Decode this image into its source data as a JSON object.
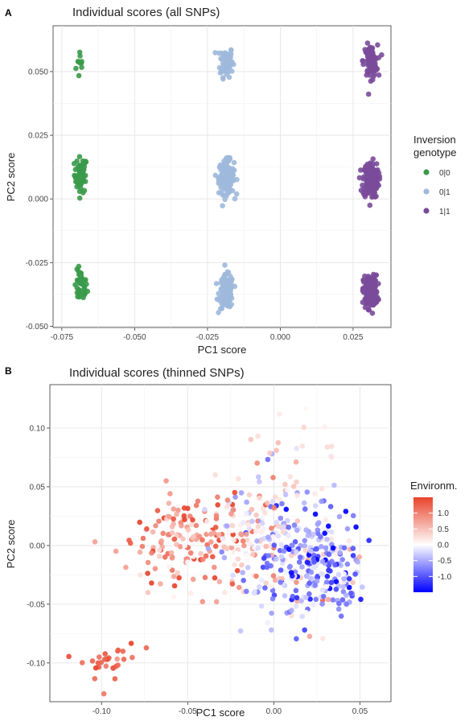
{
  "chart_data": [
    {
      "panel": "A",
      "type": "scatter",
      "title": "Individual scores (all SNPs)",
      "xlabel": "PC1 score",
      "ylabel": "PC2 score",
      "xlim": [
        -0.078,
        0.038
      ],
      "ylim": [
        -0.0505,
        0.068
      ],
      "xticks": [
        -0.075,
        -0.05,
        -0.025,
        0.0,
        0.025
      ],
      "xtick_labels": [
        "-0.075",
        "-0.050",
        "-0.025",
        "0.000",
        "0.025"
      ],
      "yticks": [
        -0.05,
        -0.025,
        0.0,
        0.025,
        0.05
      ],
      "ytick_labels": [
        "-0.050",
        "-0.025",
        "0.000",
        "0.025",
        "0.050"
      ],
      "grid": true,
      "legend": {
        "title_lines": [
          "Inversion",
          "genotype"
        ],
        "placement": "right",
        "entries": [
          {
            "label": "0|0",
            "color": "#3a9a4a"
          },
          {
            "label": "0|1",
            "color": "#9fb9dc"
          },
          {
            "label": "1|1",
            "color": "#7a4b9a"
          }
        ]
      },
      "series": [
        {
          "name": "0|0",
          "color": "#3a9a4a",
          "clusters": [
            {
              "x": -0.0685,
              "y": 0.053,
              "sx": 0.0008,
              "sy": 0.0033,
              "n": 10
            },
            {
              "x": -0.0685,
              "y": 0.0095,
              "sx": 0.0011,
              "sy": 0.0035,
              "n": 55
            },
            {
              "x": -0.0685,
              "y": -0.0345,
              "sx": 0.0011,
              "sy": 0.0032,
              "n": 40
            }
          ]
        },
        {
          "name": "0|1",
          "color": "#9fb9dc",
          "clusters": [
            {
              "x": -0.0185,
              "y": 0.054,
              "sx": 0.0011,
              "sy": 0.003,
              "n": 85
            },
            {
              "x": -0.0185,
              "y": 0.0085,
              "sx": 0.0013,
              "sy": 0.0033,
              "n": 170
            },
            {
              "x": -0.0185,
              "y": -0.0365,
              "sx": 0.0012,
              "sy": 0.0032,
              "n": 150
            }
          ]
        },
        {
          "name": "1|1",
          "color": "#7a4b9a",
          "clusters": [
            {
              "x": 0.031,
              "y": 0.054,
              "sx": 0.0012,
              "sy": 0.0032,
              "n": 90
            },
            {
              "x": 0.031,
              "y": 0.0075,
              "sx": 0.0013,
              "sy": 0.0035,
              "n": 190
            },
            {
              "x": 0.031,
              "y": -0.0365,
              "sx": 0.0012,
              "sy": 0.0032,
              "n": 170
            }
          ]
        }
      ]
    },
    {
      "panel": "B",
      "type": "scatter",
      "title": "Individual scores (thinned SNPs)",
      "xlabel": "PC1 score",
      "ylabel": "PC2 score",
      "xlim": [
        -0.13,
        0.068
      ],
      "ylim": [
        -0.133,
        0.137
      ],
      "xticks": [
        -0.1,
        -0.05,
        0.0,
        0.05
      ],
      "xtick_labels": [
        "-0.10",
        "-0.05",
        "0.00",
        "0.05"
      ],
      "yticks": [
        -0.1,
        -0.05,
        0.0,
        0.05,
        0.1
      ],
      "ytick_labels": [
        "-0.10",
        "-0.05",
        "0.00",
        "0.05",
        "0.10"
      ],
      "grid": true,
      "colorbar": {
        "title": "Environm.",
        "placement": "right",
        "range": [
          -1.5,
          1.5
        ],
        "ticks": [
          1.0,
          0.5,
          0.0,
          -0.5,
          -1.0
        ],
        "tick_labels": [
          "1.0",
          "0.5",
          "0.0",
          "-0.5",
          "-1.0"
        ],
        "colors": [
          "#0000ff",
          "#ffffff",
          "#e8432b"
        ]
      },
      "groups": [
        {
          "x": -0.095,
          "y": -0.098,
          "sx": 0.008,
          "sy": 0.009,
          "n": 30,
          "env": 1.2,
          "env_sd": 0.15
        },
        {
          "x": -0.055,
          "y": 0.0,
          "sx": 0.013,
          "sy": 0.02,
          "n": 120,
          "env": 0.95,
          "env_sd": 0.4
        },
        {
          "x": -0.02,
          "y": 0.012,
          "sx": 0.012,
          "sy": 0.02,
          "n": 90,
          "env": 0.35,
          "env_sd": 0.6
        },
        {
          "x": 0.005,
          "y": -0.005,
          "sx": 0.015,
          "sy": 0.028,
          "n": 200,
          "env": -0.25,
          "env_sd": 0.6
        },
        {
          "x": 0.03,
          "y": -0.018,
          "sx": 0.012,
          "sy": 0.025,
          "n": 170,
          "env": -0.7,
          "env_sd": 0.5
        },
        {
          "x": 0.01,
          "y": 0.09,
          "sx": 0.015,
          "sy": 0.018,
          "n": 20,
          "env": 0.3,
          "env_sd": 0.2
        }
      ]
    }
  ]
}
